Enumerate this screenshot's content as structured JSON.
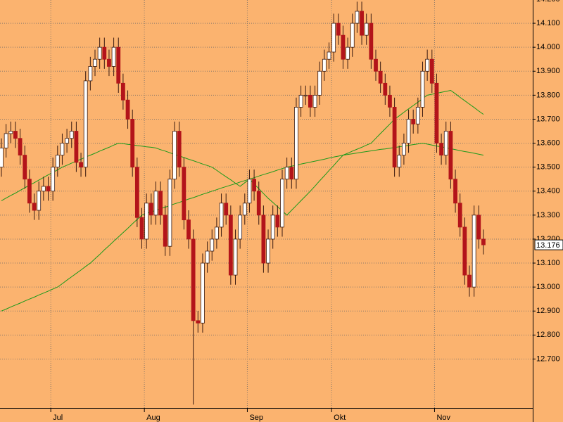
{
  "chart_data": {
    "type": "candlestick",
    "categories": [
      null,
      null,
      null,
      null,
      null,
      null,
      null,
      null,
      null,
      null,
      null,
      "Jul",
      null,
      null,
      null,
      null,
      null,
      null,
      null,
      null,
      null,
      null,
      null,
      null,
      null,
      null,
      null,
      null,
      null,
      null,
      null,
      "Aug",
      null,
      null,
      null,
      null,
      null,
      null,
      null,
      null,
      null,
      null,
      null,
      null,
      null,
      null,
      null,
      null,
      null,
      null,
      null,
      null,
      null,
      "Sep",
      null,
      null,
      null,
      null,
      null,
      null,
      null,
      null,
      null,
      null,
      null,
      null,
      null,
      null,
      null,
      null,
      null,
      "Okt",
      null,
      null,
      null,
      null,
      null,
      null,
      null,
      null,
      null,
      null,
      null,
      null,
      null,
      null,
      null,
      null,
      null,
      null,
      null,
      null,
      null,
      "Nov",
      null,
      null,
      null,
      null,
      null,
      null,
      null,
      null,
      null,
      null
    ],
    "open": [
      13500,
      13580,
      13640,
      13650,
      13620,
      13550,
      13450,
      13350,
      13320,
      13400,
      13420,
      13400,
      13500,
      13550,
      13600,
      13620,
      13650,
      13520,
      13500,
      13860,
      13920,
      13950,
      14000,
      13950,
      13920,
      14000,
      13850,
      13780,
      13700,
      13500,
      13290,
      13200,
      13350,
      13300,
      13400,
      13300,
      13170,
      13450,
      13650,
      13500,
      13280,
      13200,
      12860,
      12850,
      13100,
      13150,
      13200,
      13250,
      13350,
      13300,
      13050,
      13200,
      13300,
      13350,
      13450,
      13400,
      13300,
      13100,
      13200,
      13300,
      13250,
      13450,
      13500,
      13450,
      13750,
      13800,
      13800,
      13750,
      13800,
      13900,
      13950,
      13980,
      14100,
      14050,
      13950,
      14000,
      14100,
      14150,
      14050,
      14100,
      13950,
      13900,
      13850,
      13800,
      13750,
      13500,
      13550,
      13600,
      13700,
      13680,
      13750,
      13900,
      13950,
      13850,
      13600,
      13550,
      13650,
      13450,
      13350,
      13250,
      13050,
      13000,
      13300,
      13200
    ],
    "high": [
      13620,
      13680,
      13690,
      13690,
      13660,
      13590,
      13490,
      13390,
      13440,
      13460,
      13460,
      13540,
      13590,
      13640,
      13660,
      13690,
      13690,
      13560,
      13900,
      13960,
      13990,
      14040,
      14040,
      13990,
      14040,
      14040,
      13890,
      13820,
      13740,
      13540,
      13330,
      13390,
      13390,
      13440,
      13440,
      13340,
      13490,
      13690,
      13690,
      13540,
      13320,
      13240,
      12900,
      13140,
      13190,
      13240,
      13290,
      13390,
      13390,
      13340,
      13240,
      13340,
      13390,
      13490,
      13490,
      13440,
      13340,
      13240,
      13340,
      13340,
      13490,
      13540,
      13540,
      13790,
      13840,
      13840,
      13840,
      13840,
      13940,
      13990,
      14020,
      14140,
      14140,
      14090,
      14040,
      14140,
      14190,
      14190,
      14140,
      14140,
      13990,
      13940,
      13890,
      13840,
      13790,
      13590,
      13640,
      13740,
      13740,
      13790,
      13940,
      13990,
      13990,
      13890,
      13640,
      13690,
      13690,
      13490,
      13390,
      13290,
      13090,
      13340,
      13340,
      13240
    ],
    "low": [
      13460,
      13540,
      13600,
      13580,
      13510,
      13410,
      13310,
      13280,
      13280,
      13360,
      13360,
      13360,
      13460,
      13510,
      13560,
      13580,
      13480,
      13460,
      13460,
      13820,
      13880,
      13910,
      13910,
      13880,
      13880,
      13810,
      13740,
      13660,
      13460,
      13250,
      13160,
      13160,
      13260,
      13260,
      13260,
      13130,
      13130,
      13410,
      13460,
      13240,
      13160,
      12510,
      12810,
      12810,
      13060,
      13110,
      13160,
      13210,
      13260,
      13010,
      13010,
      13160,
      13260,
      13310,
      13360,
      13260,
      13060,
      13060,
      13160,
      13210,
      13210,
      13410,
      13410,
      13410,
      13710,
      13760,
      13710,
      13710,
      13760,
      13860,
      13910,
      13940,
      14010,
      13910,
      13910,
      13960,
      14060,
      14010,
      14010,
      13910,
      13860,
      13810,
      13760,
      13710,
      13460,
      13460,
      13510,
      13560,
      13640,
      13640,
      13710,
      13860,
      13810,
      13560,
      13510,
      13510,
      13410,
      13310,
      13210,
      13010,
      12960,
      12960,
      13160,
      13136
    ],
    "close": [
      13580,
      13640,
      13650,
      13620,
      13550,
      13450,
      13350,
      13320,
      13400,
      13420,
      13400,
      13500,
      13550,
      13600,
      13620,
      13650,
      13520,
      13500,
      13860,
      13920,
      13950,
      14000,
      13950,
      13920,
      14000,
      13850,
      13780,
      13700,
      13500,
      13290,
      13200,
      13350,
      13300,
      13400,
      13300,
      13170,
      13450,
      13650,
      13500,
      13280,
      13200,
      12860,
      12850,
      13100,
      13150,
      13200,
      13250,
      13350,
      13300,
      13050,
      13200,
      13300,
      13350,
      13450,
      13400,
      13300,
      13100,
      13200,
      13300,
      13250,
      13450,
      13500,
      13450,
      13750,
      13800,
      13800,
      13750,
      13800,
      13900,
      13950,
      13980,
      14100,
      14050,
      13950,
      14000,
      14100,
      14150,
      14050,
      14100,
      13950,
      13900,
      13850,
      13800,
      13750,
      13500,
      13550,
      13600,
      13700,
      13680,
      13750,
      13900,
      13950,
      13850,
      13600,
      13550,
      13650,
      13450,
      13350,
      13250,
      13050,
      13000,
      13300,
      13200,
      13176
    ],
    "up_color": "#ffffff",
    "down_color": "#b3141a",
    "series": [
      {
        "color": "#1a9a1a",
        "values": [
          13360,
          13371,
          13382,
          13392,
          13403,
          13414,
          13425,
          13435,
          13446,
          13457,
          13468,
          13478,
          13489,
          13500,
          13508,
          13517,
          13525,
          13533,
          13542,
          13550,
          13558,
          13567,
          13575,
          13583,
          13592,
          13600,
          13598,
          13595,
          13593,
          13590,
          13588,
          13585,
          13583,
          13580,
          13573,
          13567,
          13560,
          13553,
          13547,
          13540,
          13533,
          13527,
          13520,
          13513,
          13507,
          13500,
          13487,
          13473,
          13460,
          13447,
          13433,
          13420,
          13435,
          13450,
          13430,
          13410,
          13390,
          13370,
          13353,
          13335,
          13318,
          13300,
          13320,
          13340,
          13360,
          13380,
          13400,
          13421,
          13443,
          13464,
          13486,
          13507,
          13529,
          13550,
          13558,
          13567,
          13575,
          13583,
          13592,
          13600,
          13620,
          13640,
          13660,
          13680,
          13700,
          13714,
          13729,
          13743,
          13757,
          13771,
          13786,
          13800,
          13804,
          13808,
          13812,
          13816,
          13820,
          13806,
          13791,
          13777,
          13763,
          13749,
          13734,
          13720
        ]
      },
      {
        "color": "#1a9a1a",
        "values": [
          12900,
          12908,
          12917,
          12925,
          12933,
          12942,
          12950,
          12958,
          12967,
          12975,
          12983,
          12992,
          13000,
          13014,
          13029,
          13043,
          13057,
          13071,
          13086,
          13100,
          13118,
          13136,
          13155,
          13173,
          13191,
          13209,
          13227,
          13245,
          13264,
          13282,
          13300,
          13307,
          13313,
          13320,
          13327,
          13333,
          13340,
          13347,
          13353,
          13360,
          13367,
          13373,
          13380,
          13387,
          13393,
          13400,
          13406,
          13413,
          13419,
          13425,
          13431,
          13438,
          13444,
          13450,
          13456,
          13463,
          13469,
          13475,
          13481,
          13488,
          13494,
          13500,
          13504,
          13508,
          13513,
          13517,
          13521,
          13525,
          13529,
          13533,
          13538,
          13542,
          13546,
          13550,
          13553,
          13556,
          13559,
          13562,
          13565,
          13568,
          13571,
          13574,
          13576,
          13579,
          13582,
          13585,
          13588,
          13591,
          13594,
          13597,
          13600,
          13596,
          13592,
          13588,
          13585,
          13581,
          13577,
          13573,
          13569,
          13565,
          13562,
          13558,
          13554,
          13550
        ]
      }
    ],
    "last_price": {
      "value": 13176,
      "label": "13.176"
    },
    "ylim": [
      12496,
      14197
    ],
    "yticks": [
      {
        "value": 12700,
        "label": "12.700"
      },
      {
        "value": 12800,
        "label": "12.800"
      },
      {
        "value": 12900,
        "label": "12.900"
      },
      {
        "value": 13000,
        "label": "13.000"
      },
      {
        "value": 13100,
        "label": "13.100"
      },
      {
        "value": 13200,
        "label": "13.200"
      },
      {
        "value": 13300,
        "label": "13.300"
      },
      {
        "value": 13400,
        "label": "13.400"
      },
      {
        "value": 13500,
        "label": "13.500"
      },
      {
        "value": 13600,
        "label": "13.600"
      },
      {
        "value": 13700,
        "label": "13.700"
      },
      {
        "value": 13800,
        "label": "13.800"
      },
      {
        "value": 13900,
        "label": "13.900"
      },
      {
        "value": 14000,
        "label": "14.000"
      },
      {
        "value": 14100,
        "label": "14.100"
      },
      {
        "value": 14200,
        "label": "14.200"
      }
    ],
    "grid": true
  }
}
